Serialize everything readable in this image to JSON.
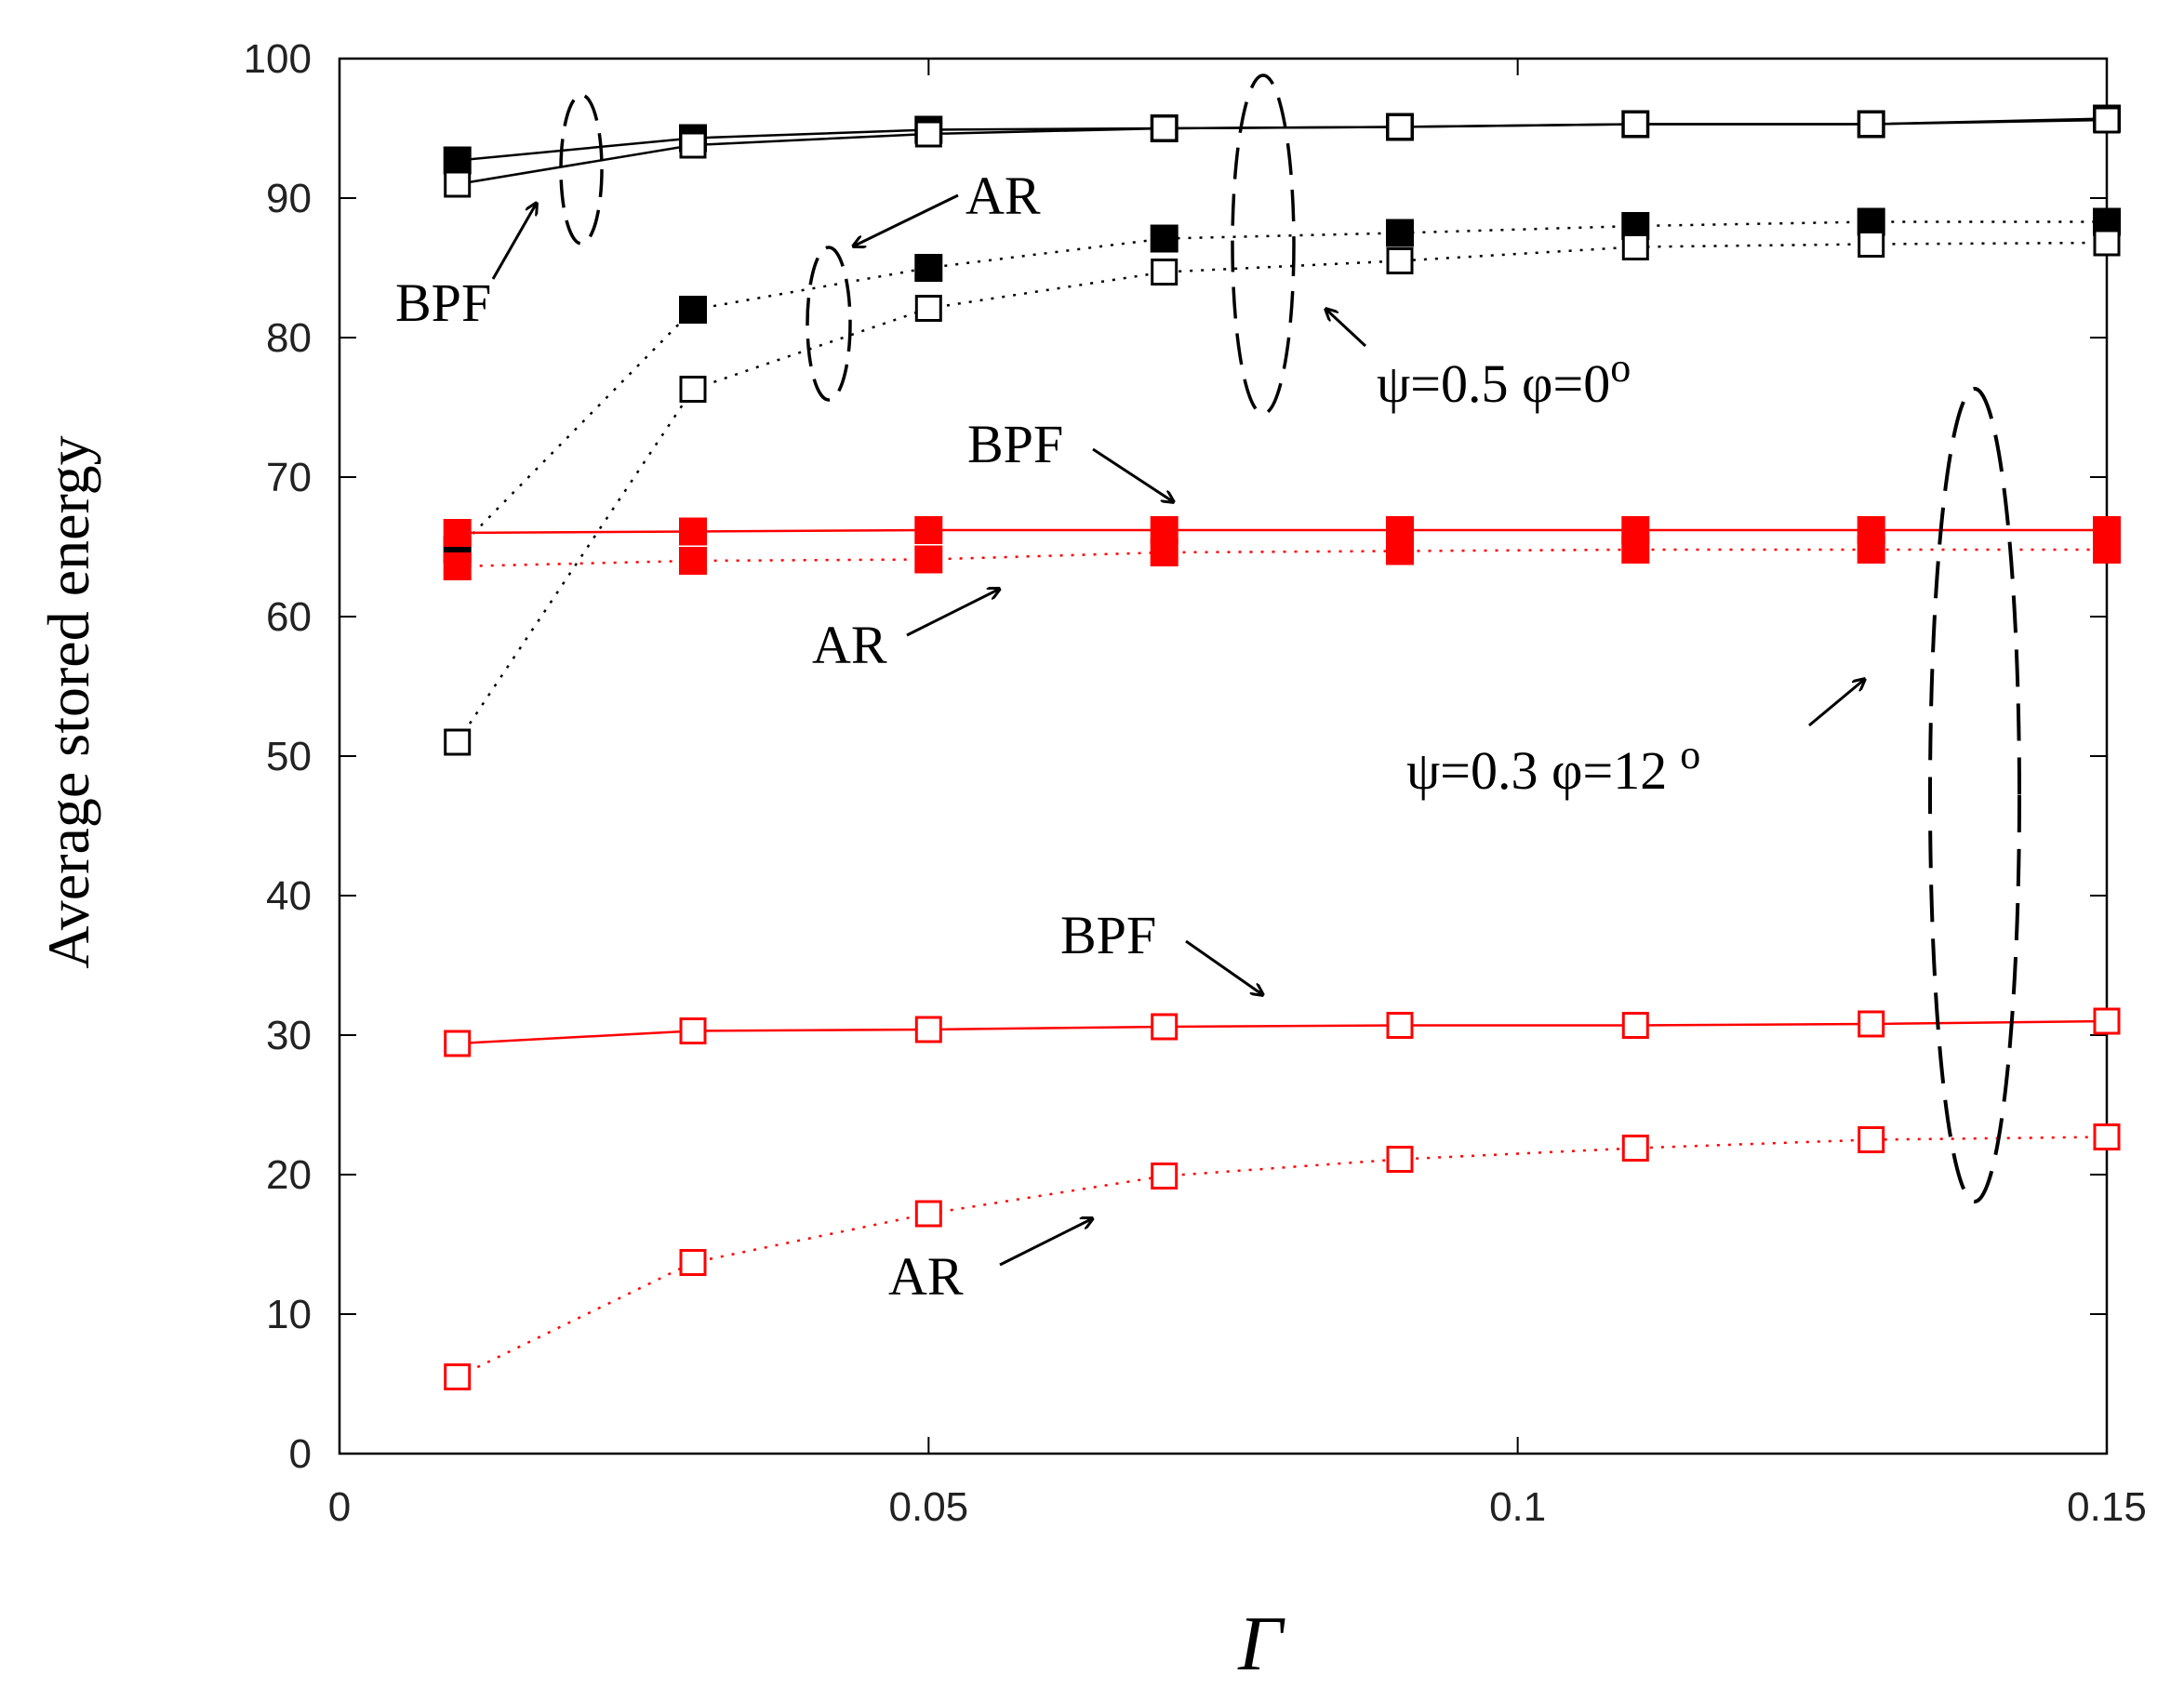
{
  "chart_data": {
    "type": "line",
    "title": "",
    "xlabel": "Γ",
    "ylabel": "Average stored energy",
    "xlim": [
      0,
      0.15
    ],
    "ylim": [
      0,
      100
    ],
    "xticks": [
      0,
      0.05,
      0.1,
      0.15
    ],
    "xtick_labels": [
      "0",
      "0.05",
      "0.1",
      "0.15"
    ],
    "yticks": [
      0,
      10,
      20,
      30,
      40,
      50,
      60,
      70,
      80,
      90,
      100
    ],
    "ytick_labels": [
      "0",
      "10",
      "20",
      "30",
      "40",
      "50",
      "60",
      "70",
      "80",
      "90",
      "100"
    ],
    "grid": false,
    "x": [
      0.01,
      0.03,
      0.05,
      0.07,
      0.09,
      0.11,
      0.13,
      0.15
    ],
    "series": [
      {
        "name": "BPF ψ=0.5 φ=0° (filled)",
        "color": "#000000",
        "line": "solid",
        "marker": "filled-square",
        "values": [
          92.7,
          94.3,
          94.9,
          95.0,
          95.1,
          95.3,
          95.3,
          95.7
        ]
      },
      {
        "name": "BPF ψ=0.5 φ=0° (open)",
        "color": "#000000",
        "line": "solid",
        "marker": "open-square",
        "values": [
          91.0,
          93.8,
          94.6,
          95.0,
          95.1,
          95.3,
          95.3,
          95.6
        ]
      },
      {
        "name": "AR ψ=0.5 φ=0° (filled)",
        "color": "#000000",
        "line": "dotted",
        "marker": "filled-square",
        "values": [
          64.8,
          82.0,
          85.0,
          87.1,
          87.5,
          88.0,
          88.3,
          88.3
        ]
      },
      {
        "name": "AR ψ=0.5 φ=0° (open)",
        "color": "#000000",
        "line": "dotted",
        "marker": "open-square",
        "values": [
          51.0,
          76.3,
          82.1,
          84.7,
          85.5,
          86.5,
          86.7,
          86.8
        ]
      },
      {
        "name": "BPF ψ=0.3 φ=12° (filled)",
        "color": "#ff0000",
        "line": "solid",
        "marker": "filled-square",
        "values": [
          66.0,
          66.1,
          66.2,
          66.2,
          66.2,
          66.2,
          66.2,
          66.2
        ]
      },
      {
        "name": "AR ψ=0.3 φ=12° (filled)",
        "color": "#ff0000",
        "line": "dotted",
        "marker": "filled-square",
        "values": [
          63.6,
          64.0,
          64.1,
          64.6,
          64.7,
          64.8,
          64.8,
          64.8
        ]
      },
      {
        "name": "BPF ψ=0.3 φ=12° (open)",
        "color": "#ff0000",
        "line": "solid",
        "marker": "open-square",
        "values": [
          29.4,
          30.3,
          30.4,
          30.6,
          30.7,
          30.7,
          30.8,
          31.0
        ]
      },
      {
        "name": "AR ψ=0.3 φ=12° (open)",
        "color": "#ff0000",
        "line": "dotted",
        "marker": "open-square",
        "values": [
          5.5,
          13.7,
          17.2,
          19.9,
          21.1,
          21.9,
          22.5,
          22.7
        ]
      }
    ],
    "annotations": {
      "bpf_top": "BPF",
      "ar_top": "AR",
      "psi_top": "ψ=0.5  φ=0",
      "psi_top_sup": "o",
      "bpf_mid": "BPF",
      "ar_mid": "AR",
      "psi_bottom": "ψ=0.3   φ=12",
      "psi_bottom_sup": "o",
      "bpf_bottom": "BPF",
      "ar_bottom": "AR"
    }
  }
}
